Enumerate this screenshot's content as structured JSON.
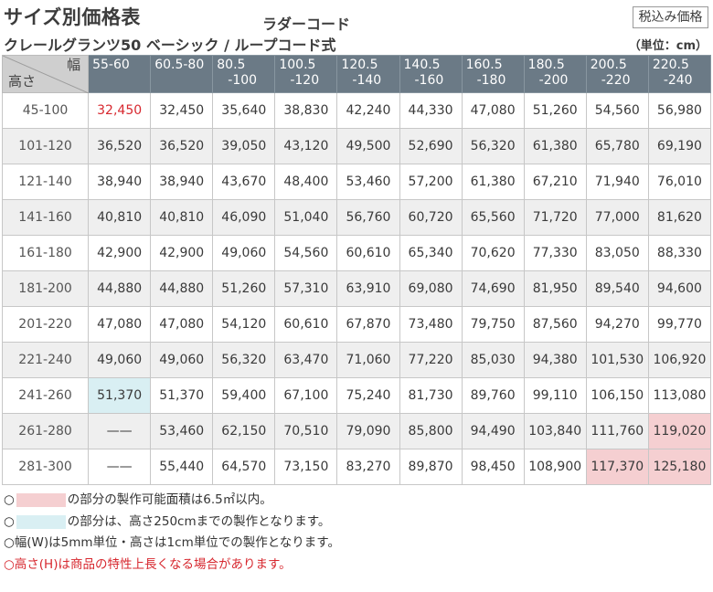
{
  "header": {
    "title": "サイズ別価格表",
    "ladder": "ラダーコード",
    "product": "クレールグランツ50 ベーシック / ループコード式",
    "tax_badge": "税込み価格",
    "unit": "（単位：cm）"
  },
  "table": {
    "corner_width": "幅",
    "corner_height": "高さ",
    "columns": [
      {
        "l1": "55-60",
        "l2": ""
      },
      {
        "l1": "60.5-80",
        "l2": ""
      },
      {
        "l1": "80.5",
        "l2": "-100"
      },
      {
        "l1": "100.5",
        "l2": "-120"
      },
      {
        "l1": "120.5",
        "l2": "-140"
      },
      {
        "l1": "140.5",
        "l2": "-160"
      },
      {
        "l1": "160.5",
        "l2": "-180"
      },
      {
        "l1": "180.5",
        "l2": "-200"
      },
      {
        "l1": "200.5",
        "l2": "-220"
      },
      {
        "l1": "220.5",
        "l2": "-240"
      }
    ],
    "rows": [
      {
        "h": "45-100",
        "cells": [
          "32,450",
          "32,450",
          "35,640",
          "38,830",
          "42,240",
          "44,330",
          "47,080",
          "51,260",
          "54,560",
          "56,980"
        ]
      },
      {
        "h": "101-120",
        "cells": [
          "36,520",
          "36,520",
          "39,050",
          "43,120",
          "49,500",
          "52,690",
          "56,320",
          "61,380",
          "65,780",
          "69,190"
        ]
      },
      {
        "h": "121-140",
        "cells": [
          "38,940",
          "38,940",
          "43,670",
          "48,400",
          "53,460",
          "57,200",
          "61,380",
          "67,210",
          "71,940",
          "76,010"
        ]
      },
      {
        "h": "141-160",
        "cells": [
          "40,810",
          "40,810",
          "46,090",
          "51,040",
          "56,760",
          "60,720",
          "65,560",
          "71,720",
          "77,000",
          "81,620"
        ]
      },
      {
        "h": "161-180",
        "cells": [
          "42,900",
          "42,900",
          "49,060",
          "54,560",
          "60,610",
          "65,340",
          "70,620",
          "77,330",
          "83,050",
          "88,330"
        ]
      },
      {
        "h": "181-200",
        "cells": [
          "44,880",
          "44,880",
          "51,260",
          "57,310",
          "63,910",
          "69,080",
          "74,690",
          "81,950",
          "89,540",
          "94,600"
        ]
      },
      {
        "h": "201-220",
        "cells": [
          "47,080",
          "47,080",
          "54,120",
          "60,610",
          "67,870",
          "73,480",
          "79,750",
          "87,560",
          "94,270",
          "99,770"
        ]
      },
      {
        "h": "221-240",
        "cells": [
          "49,060",
          "49,060",
          "56,320",
          "63,470",
          "71,060",
          "77,220",
          "85,030",
          "94,380",
          "101,530",
          "106,920"
        ]
      },
      {
        "h": "241-260",
        "cells": [
          "51,370",
          "51,370",
          "59,400",
          "67,100",
          "75,240",
          "81,730",
          "89,760",
          "99,110",
          "106,150",
          "113,080"
        ]
      },
      {
        "h": "261-280",
        "cells": [
          "——",
          "53,460",
          "62,150",
          "70,510",
          "79,090",
          "85,800",
          "94,490",
          "103,840",
          "111,760",
          "119,020"
        ]
      },
      {
        "h": "281-300",
        "cells": [
          "——",
          "55,440",
          "64,570",
          "73,150",
          "83,270",
          "89,870",
          "98,450",
          "108,900",
          "117,370",
          "125,180"
        ]
      }
    ]
  },
  "notes": {
    "n1_pre": "○",
    "n1_post": "の部分の製作可能面積は6.5㎡以内。",
    "n2_pre": "○",
    "n2_post": "の部分は、高さ250cmまでの製作となります。",
    "n3": "○幅(W)は5mm単位・高さは1cm単位での製作となります。",
    "n4": "○高さ(H)は商品の特性上長くなる場合があります。"
  },
  "colors": {
    "header_bg": "#6b7a86",
    "highlight_pink": "#f5cfd1",
    "highlight_blue": "#d9eff3",
    "price_red": "#d7282f"
  }
}
